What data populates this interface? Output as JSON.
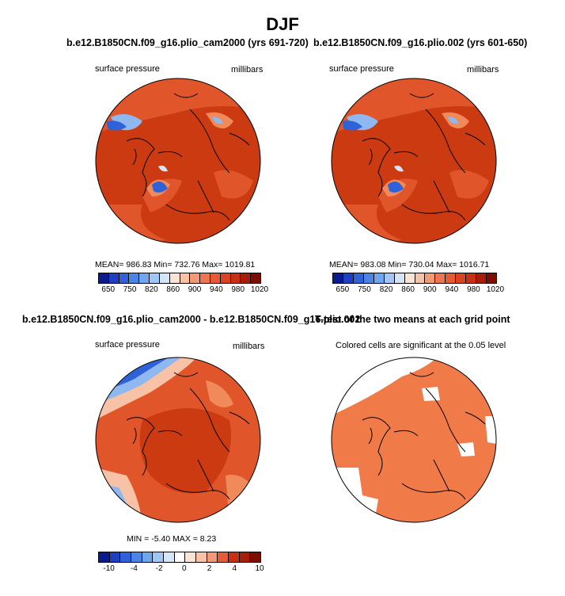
{
  "title": "DJF",
  "panels": {
    "top_left": {
      "title": "b.e12.B1850CN.f09_g16.plio_cam2000 (yrs 691-720)",
      "left_label": "surface pressure",
      "right_label": "millibars",
      "stats": "MEAN=  986.83   Min=  732.76   Max=  1019.81"
    },
    "top_right": {
      "title": "b.e12.B1850CN.f09_g16.plio.002 (yrs 601-650)",
      "left_label": "surface pressure",
      "right_label": "millibars",
      "stats": "MEAN=  983.08   Min=  730.04   Max=  1016.71"
    },
    "bottom_left": {
      "title": "b.e12.B1850CN.f09_g16.plio_cam2000 - b.e12.B1850CN.f09_g16.plio.002",
      "left_label": "surface pressure",
      "right_label": "millibars",
      "stats": "MIN  =   -5.40  MAX  =     8.23"
    },
    "bottom_right": {
      "title": "T-test of the two means at each grid point",
      "subtitle": "Colored cells are significant at the 0.05 level"
    }
  },
  "colorbars": {
    "pressure": {
      "colors": [
        "#0b1a8c",
        "#1e3fbf",
        "#2f62d8",
        "#4a85e6",
        "#6fa7ef",
        "#a0c6f5",
        "#d4e5fa",
        "#fbe4d5",
        "#f7c2a5",
        "#f29a73",
        "#ec7650",
        "#e55b35",
        "#d84420",
        "#c73012",
        "#a81d07",
        "#7d0d00"
      ],
      "ticks": [
        "650",
        "750",
        "820",
        "860",
        "900",
        "940",
        "980",
        "1020"
      ]
    },
    "difference": {
      "colors": [
        "#0b1a8c",
        "#1e3fbf",
        "#2f62d8",
        "#4a85e6",
        "#6fa7ef",
        "#a0c6f5",
        "#d4e5fa",
        "#ffffff",
        "#fbe4d5",
        "#f7c2a5",
        "#f29a73",
        "#e55b35",
        "#c73012",
        "#a81d07",
        "#7d0d00"
      ],
      "ticks": [
        "-10",
        "-4",
        "-2",
        "0",
        "2",
        "4",
        "10"
      ]
    }
  },
  "map_colors": {
    "deep_red": "#cc3a12",
    "mid_red": "#e0562a",
    "light_red": "#f08a5a",
    "pale": "#f7c2a5",
    "blue": "#2f62d8",
    "light_blue": "#8fb8f0",
    "ttest_orange": "#f07a48",
    "coast": "#000000"
  }
}
